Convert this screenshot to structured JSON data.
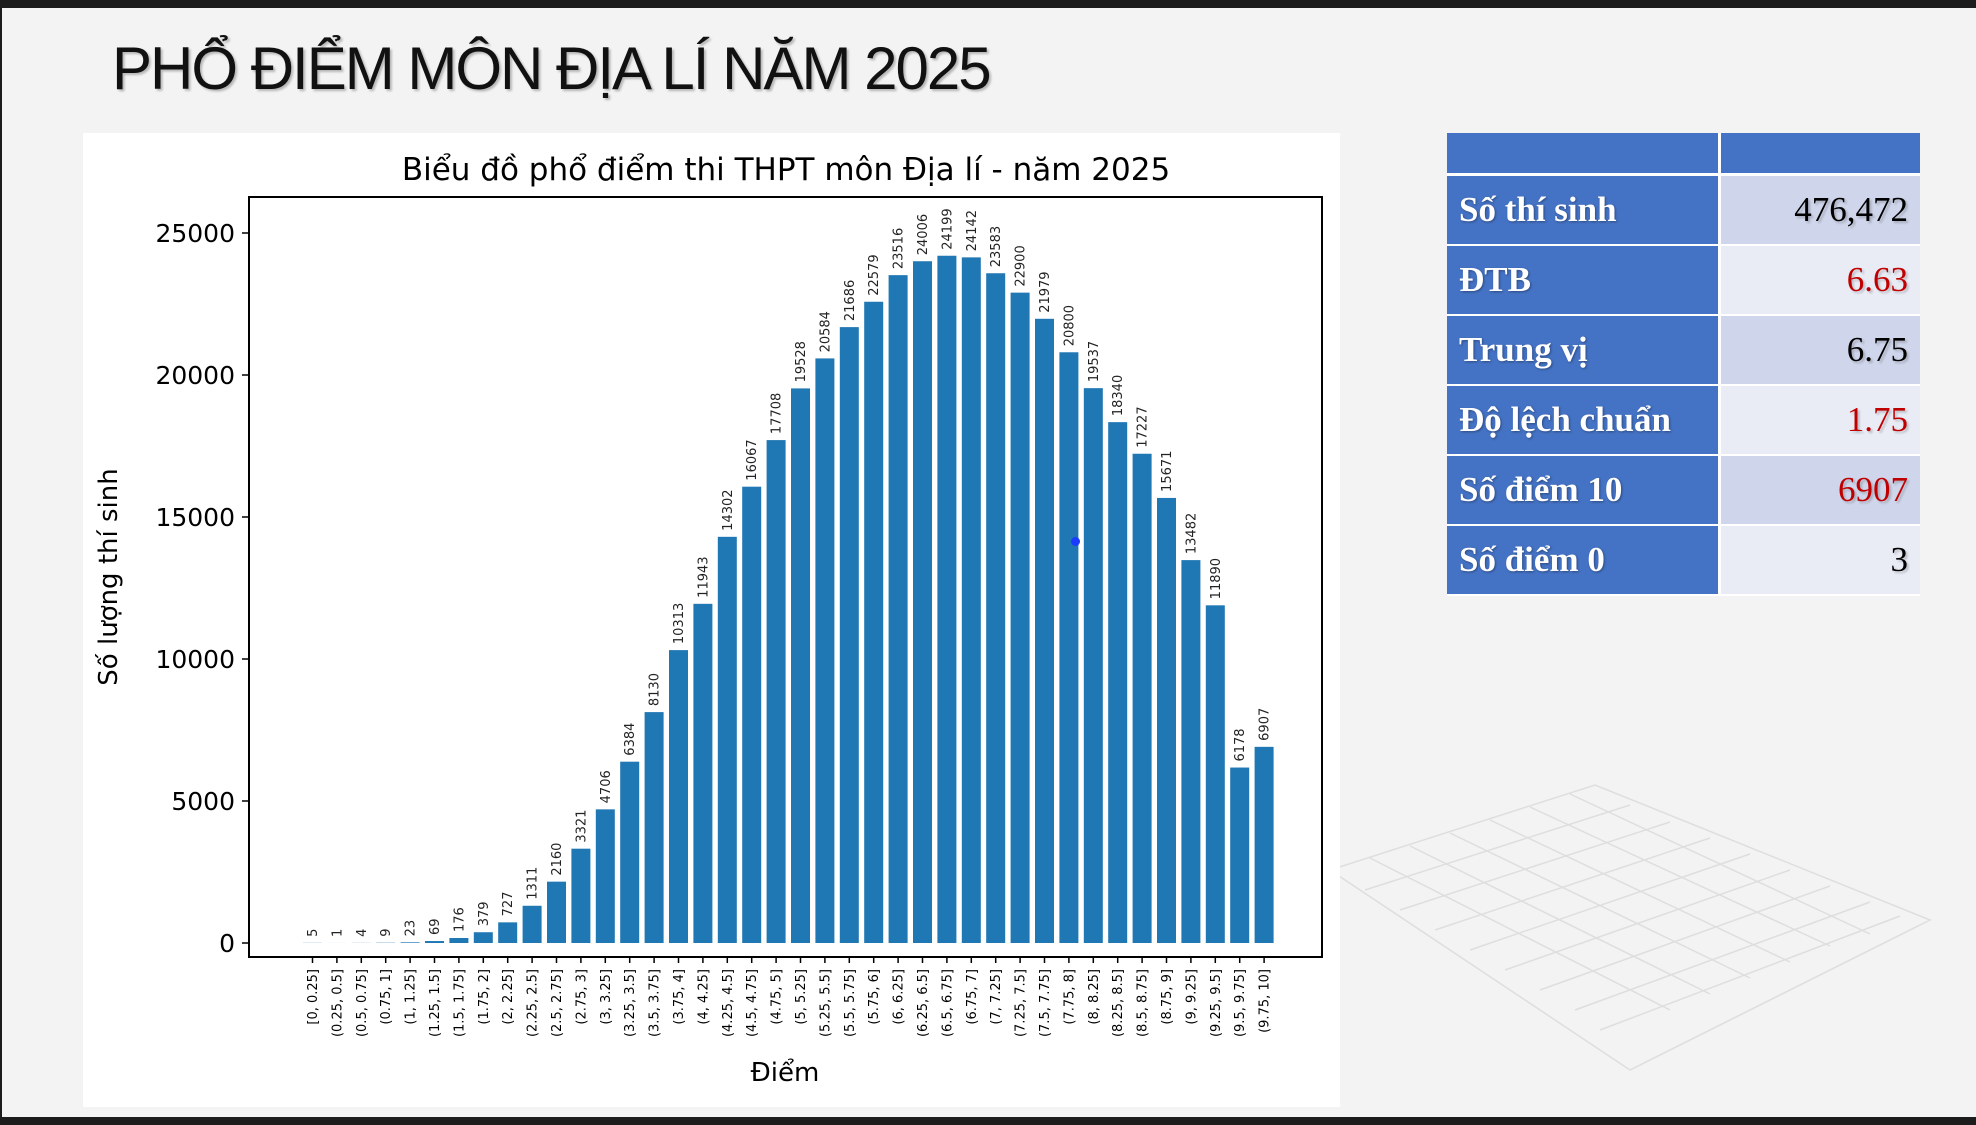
{
  "slide": {
    "title": "PHỔ ĐIỂM MÔN ĐỊA LÍ NĂM 2025"
  },
  "chart_data": {
    "type": "bar",
    "title": "Biểu đồ phổ điểm thi THPT môn Địa lí - năm 2025",
    "xlabel": "Điểm",
    "ylabel": "Số lượng thí sinh",
    "ylim": [
      0,
      26500
    ],
    "yticks": [
      0,
      5000,
      10000,
      15000,
      20000,
      25000
    ],
    "grid": false,
    "bar_color": "#1f77b4",
    "categories": [
      "[0, 0.25]",
      "(0.25, 0.5]",
      "(0.5, 0.75]",
      "(0.75, 1]",
      "(1, 1.25]",
      "(1.25, 1.5]",
      "(1.5, 1.75]",
      "(1.75, 2]",
      "(2, 2.25]",
      "(2.25, 2.5]",
      "(2.5, 2.75]",
      "(2.75, 3]",
      "(3, 3.25]",
      "(3.25, 3.5]",
      "(3.5, 3.75]",
      "(3.75, 4]",
      "(4, 4.25]",
      "(4.25, 4.5]",
      "(4.5, 4.75]",
      "(4.75, 5]",
      "(5, 5.25]",
      "(5.25, 5.5]",
      "(5.5, 5.75]",
      "(5.75, 6]",
      "(6, 6.25]",
      "(6.25, 6.5]",
      "(6.5, 6.75]",
      "(6.75, 7]",
      "(7, 7.25]",
      "(7.25, 7.5]",
      "(7.5, 7.75]",
      "(7.75, 8]",
      "(8, 8.25]",
      "(8.25, 8.5]",
      "(8.5, 8.75]",
      "(8.75, 9]",
      "(9, 9.25]",
      "(9.25, 9.5]",
      "(9.5, 9.75]",
      "(9.75, 10]"
    ],
    "values": [
      5,
      1,
      4,
      9,
      23,
      69,
      176,
      379,
      727,
      1311,
      2160,
      3321,
      4706,
      6384,
      8130,
      10313,
      11943,
      14302,
      16067,
      17708,
      19528,
      20584,
      21686,
      22579,
      23516,
      24006,
      24199,
      24142,
      23583,
      22900,
      21979,
      20800,
      19537,
      18340,
      17227,
      15671,
      13482,
      11890,
      6178,
      6907
    ]
  },
  "stats": {
    "rows": [
      {
        "label": "Số thí sinh",
        "value": "476,472",
        "color": "#000000"
      },
      {
        "label": "ĐTB",
        "value": "6.63",
        "color": "#c00000"
      },
      {
        "label": "Trung vị",
        "value": "6.75",
        "color": "#000000"
      },
      {
        "label": "Độ lệch chuẩn",
        "value": "1.75",
        "color": "#c00000"
      },
      {
        "label": "Số điểm 10",
        "value": "6907",
        "color": "#c00000"
      },
      {
        "label": "Số điểm 0",
        "value": "3",
        "color": "#000000"
      }
    ],
    "header_color": "#4472c4"
  }
}
